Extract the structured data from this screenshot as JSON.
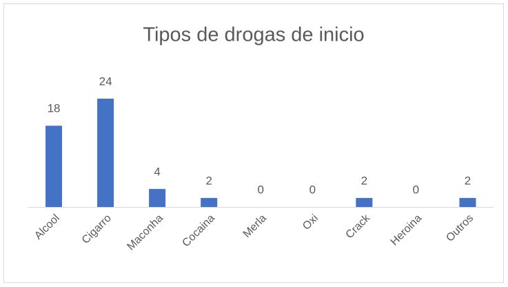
{
  "chart_data": {
    "type": "bar",
    "title": "Tipos de drogas de inicio",
    "categories": [
      "Alcool",
      "Cigarro",
      "Maconha",
      "Cocaina",
      "Merla",
      "Oxi",
      "Crack",
      "Heroina",
      "Outros"
    ],
    "values": [
      18,
      24,
      4,
      2,
      0,
      0,
      2,
      0,
      2
    ],
    "color": "#4472c4",
    "ylim": [
      0,
      24
    ]
  }
}
